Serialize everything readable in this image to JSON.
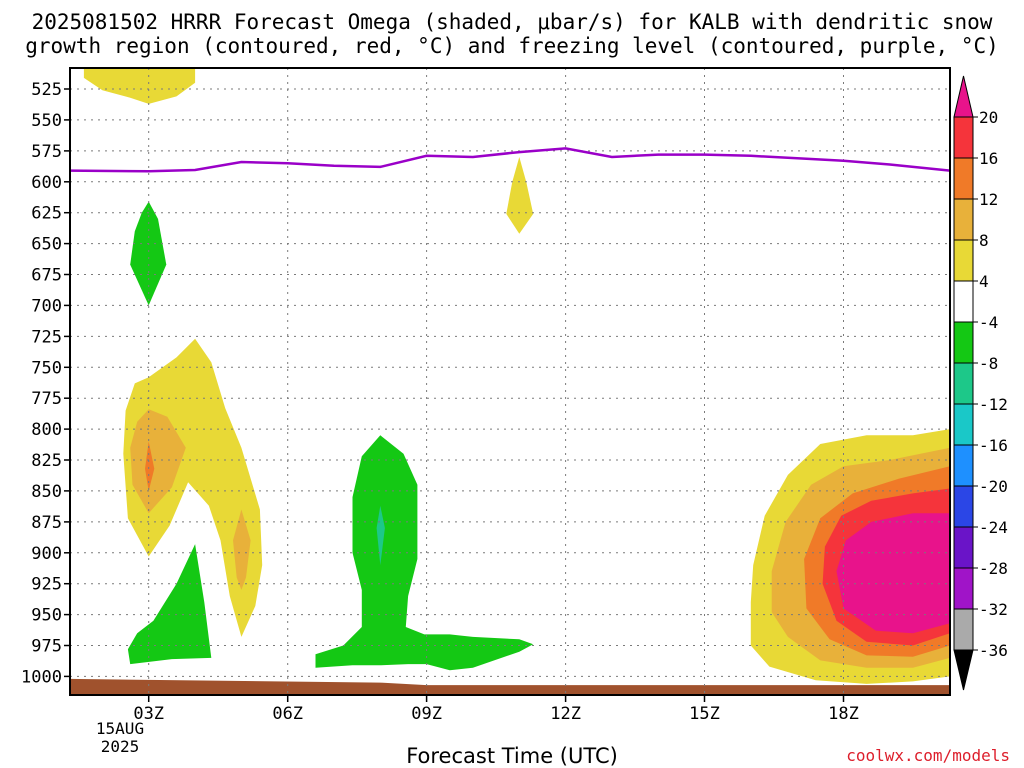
{
  "title": {
    "line1": "2025081502 HRRR Forecast Omega (shaded, μbar/s) for KALB with dendritic snow",
    "line2": "growth region (contoured, red, °C) and freezing level (contoured, purple, °C)"
  },
  "xlabel": "Forecast Time (UTC)",
  "credit": "coolwx.com/models",
  "date_label": [
    "15AUG",
    "2025"
  ],
  "colors": {
    "freezing_level": "#9a00c8",
    "ground": "#a0522d",
    "grid": "#7a7a7a"
  },
  "chart_data": {
    "type": "heatmap",
    "title": "2025081502 HRRR Forecast Omega (shaded, μbar/s) for KALB with dendritic snow growth region (contoured, red, °C) and freezing level (contoured, purple, °C)",
    "xlabel": "Forecast Time (UTC)",
    "ylabel": "",
    "x_range_hours": [
      1.3,
      20.3
    ],
    "x_ticks": [
      {
        "hour": 3,
        "label": "03Z"
      },
      {
        "hour": 6,
        "label": "06Z"
      },
      {
        "hour": 9,
        "label": "09Z"
      },
      {
        "hour": 12,
        "label": "12Z"
      },
      {
        "hour": 15,
        "label": "15Z"
      },
      {
        "hour": 18,
        "label": "18Z"
      }
    ],
    "y_range_hpa": [
      508,
      1015
    ],
    "y_ticks": [
      525,
      550,
      575,
      600,
      625,
      650,
      675,
      700,
      725,
      750,
      775,
      800,
      825,
      850,
      875,
      900,
      925,
      950,
      975,
      1000
    ],
    "grid": true,
    "colorbar": {
      "labels": [
        "20",
        "16",
        "12",
        "8",
        "4",
        "-4",
        "-8",
        "-12",
        "-16",
        "-20",
        "-24",
        "-28",
        "-32",
        "-36"
      ],
      "bins": [
        {
          "range": ">20",
          "color": "#e8138b"
        },
        {
          "range": "16-20",
          "color": "#f5343b"
        },
        {
          "range": "12-16",
          "color": "#f07a28"
        },
        {
          "range": "8-12",
          "color": "#e8b13a"
        },
        {
          "range": "4-8",
          "color": "#e8d936"
        },
        {
          "range": "-4 to 4",
          "color": "#ffffff"
        },
        {
          "range": "-8 to -4",
          "color": "#14c814"
        },
        {
          "range": "-12 to -8",
          "color": "#1dc889"
        },
        {
          "range": "-16 to -12",
          "color": "#1ac8c8"
        },
        {
          "range": "-20 to -16",
          "color": "#1e90ff"
        },
        {
          "range": "-24 to -20",
          "color": "#2b46e6"
        },
        {
          "range": "-28 to -24",
          "color": "#6a14c8"
        },
        {
          "range": "-32 to -28",
          "color": "#a014c8"
        },
        {
          "range": "-36 to -32",
          "color": "#aaaaaa"
        },
        {
          "range": "<-36",
          "color": "#000000"
        }
      ]
    },
    "freezing_level": {
      "name": "freezing level",
      "hours": [
        1.3,
        3.0,
        4.0,
        5.0,
        6.0,
        7.0,
        8.0,
        9.0,
        10.0,
        11.0,
        12.0,
        13.0,
        14.0,
        15.0,
        16.0,
        17.0,
        18.0,
        19.0,
        20.3
      ],
      "pressure_hpa": [
        591,
        591.5,
        590.5,
        584,
        585,
        587,
        588,
        579,
        580,
        576,
        573,
        580,
        578,
        578,
        579,
        581,
        583,
        586,
        591
      ]
    },
    "omega_regions": [
      {
        "name": "upper-left >4",
        "color": "#e8d936",
        "points": [
          [
            1.6,
            508
          ],
          [
            2.9,
            508
          ],
          [
            3.5,
            508
          ],
          [
            4.0,
            508
          ],
          [
            4.0,
            520
          ],
          [
            3.6,
            531
          ],
          [
            3.0,
            537
          ],
          [
            2.6,
            532
          ],
          [
            2.0,
            526
          ],
          [
            1.6,
            516
          ]
        ]
      },
      {
        "name": "11Z >4",
        "color": "#e8d936",
        "points": [
          [
            11.0,
            580
          ],
          [
            11.15,
            600
          ],
          [
            11.3,
            626
          ],
          [
            11.0,
            642
          ],
          [
            10.72,
            626
          ],
          [
            10.85,
            600
          ]
        ]
      },
      {
        "name": "03Z <-4",
        "color": "#14c814",
        "points": [
          [
            3.0,
            616
          ],
          [
            3.2,
            630
          ],
          [
            3.38,
            667
          ],
          [
            3.0,
            700
          ],
          [
            2.6,
            667
          ],
          [
            2.7,
            640
          ],
          [
            2.85,
            625
          ]
        ]
      },
      {
        "name": "03-05Z >4",
        "color": "#e8d936",
        "points": [
          [
            3.0,
            758
          ],
          [
            3.6,
            742
          ],
          [
            4.0,
            727
          ],
          [
            4.35,
            746
          ],
          [
            4.65,
            783
          ],
          [
            5.0,
            815
          ],
          [
            5.4,
            865
          ],
          [
            5.45,
            910
          ],
          [
            5.3,
            943
          ],
          [
            5.0,
            968
          ],
          [
            4.75,
            935
          ],
          [
            4.55,
            890
          ],
          [
            4.3,
            862
          ],
          [
            3.85,
            843
          ],
          [
            3.45,
            878
          ],
          [
            3.0,
            903
          ],
          [
            2.55,
            872
          ],
          [
            2.45,
            820
          ],
          [
            2.5,
            785
          ],
          [
            2.7,
            763
          ]
        ]
      },
      {
        "name": "03Z >8",
        "color": "#e8b13a",
        "points": [
          [
            3.0,
            784
          ],
          [
            3.4,
            790
          ],
          [
            3.8,
            815
          ],
          [
            3.5,
            847
          ],
          [
            3.0,
            868
          ],
          [
            2.65,
            845
          ],
          [
            2.6,
            815
          ],
          [
            2.75,
            794
          ]
        ]
      },
      {
        "name": "03Z >12",
        "color": "#f07a28",
        "points": [
          [
            3.0,
            810
          ],
          [
            3.12,
            832
          ],
          [
            3.0,
            850
          ],
          [
            2.92,
            832
          ]
        ]
      },
      {
        "name": "05Z >8",
        "color": "#e8b13a",
        "points": [
          [
            5.0,
            865
          ],
          [
            5.2,
            890
          ],
          [
            5.1,
            920
          ],
          [
            5.0,
            930
          ],
          [
            4.9,
            920
          ],
          [
            4.82,
            890
          ]
        ]
      },
      {
        "name": "04Z <-4",
        "color": "#14c814",
        "points": [
          [
            4.0,
            893
          ],
          [
            4.2,
            940
          ],
          [
            4.35,
            985
          ],
          [
            3.5,
            986
          ],
          [
            2.6,
            990
          ],
          [
            2.55,
            978
          ],
          [
            2.75,
            965
          ],
          [
            3.1,
            955
          ],
          [
            3.6,
            925
          ],
          [
            3.85,
            905
          ]
        ]
      },
      {
        "name": "08-10Z <-4",
        "color": "#14c814",
        "points": [
          [
            8.0,
            805
          ],
          [
            8.5,
            820
          ],
          [
            8.8,
            845
          ],
          [
            8.8,
            905
          ],
          [
            8.6,
            935
          ],
          [
            8.55,
            960
          ],
          [
            8.95,
            966
          ],
          [
            9.5,
            966
          ],
          [
            10.0,
            968
          ],
          [
            11.0,
            970
          ],
          [
            11.3,
            974
          ],
          [
            11.0,
            980
          ],
          [
            10.0,
            993
          ],
          [
            9.5,
            995
          ],
          [
            9.0,
            990
          ],
          [
            8.6,
            990
          ],
          [
            8.0,
            991
          ],
          [
            7.4,
            991
          ],
          [
            6.6,
            993
          ],
          [
            6.6,
            982
          ],
          [
            7.2,
            975
          ],
          [
            7.6,
            960
          ],
          [
            7.6,
            930
          ],
          [
            7.4,
            900
          ],
          [
            7.4,
            855
          ],
          [
            7.6,
            822
          ]
        ]
      },
      {
        "name": "08Z <-8",
        "color": "#1dc889",
        "points": [
          [
            8.0,
            862
          ],
          [
            8.1,
            880
          ],
          [
            8.0,
            910
          ],
          [
            7.92,
            880
          ]
        ]
      },
      {
        "name": "16-20Z >4",
        "color": "#e8d936",
        "points": [
          [
            20.3,
            800
          ],
          [
            20.3,
            1000
          ],
          [
            19.5,
            1004
          ],
          [
            18.5,
            1006
          ],
          [
            17.4,
            1003
          ],
          [
            16.4,
            992
          ],
          [
            16.0,
            975
          ],
          [
            16.0,
            940
          ],
          [
            16.05,
            910
          ],
          [
            16.3,
            870
          ],
          [
            16.8,
            837
          ],
          [
            17.5,
            812
          ],
          [
            18.5,
            805
          ],
          [
            19.5,
            805
          ]
        ]
      },
      {
        "name": "16-20Z >8",
        "color": "#e8b13a",
        "points": [
          [
            20.3,
            815
          ],
          [
            20.3,
            985
          ],
          [
            19.5,
            993
          ],
          [
            18.5,
            993
          ],
          [
            17.5,
            987
          ],
          [
            16.8,
            968
          ],
          [
            16.45,
            948
          ],
          [
            16.45,
            915
          ],
          [
            16.75,
            875
          ],
          [
            17.3,
            845
          ],
          [
            18.0,
            830
          ],
          [
            19.0,
            825
          ]
        ]
      },
      {
        "name": "16-20Z >12",
        "color": "#f07a28",
        "points": [
          [
            20.3,
            830
          ],
          [
            20.3,
            975
          ],
          [
            19.5,
            984
          ],
          [
            18.5,
            983
          ],
          [
            17.7,
            970
          ],
          [
            17.2,
            945
          ],
          [
            17.15,
            905
          ],
          [
            17.5,
            872
          ],
          [
            18.2,
            852
          ],
          [
            19.2,
            840
          ]
        ]
      },
      {
        "name": "16-20Z >16",
        "color": "#f5343b",
        "points": [
          [
            20.3,
            848
          ],
          [
            20.3,
            965
          ],
          [
            19.5,
            975
          ],
          [
            18.5,
            972
          ],
          [
            17.85,
            955
          ],
          [
            17.55,
            925
          ],
          [
            17.6,
            895
          ],
          [
            17.95,
            870
          ],
          [
            18.6,
            858
          ],
          [
            19.5,
            852
          ]
        ]
      },
      {
        "name": "16-20Z >20",
        "color": "#e8138b",
        "points": [
          [
            20.3,
            868
          ],
          [
            20.3,
            957
          ],
          [
            19.5,
            965
          ],
          [
            18.7,
            963
          ],
          [
            18.0,
            945
          ],
          [
            17.85,
            915
          ],
          [
            18.05,
            890
          ],
          [
            18.6,
            875
          ],
          [
            19.5,
            868
          ]
        ]
      }
    ],
    "ground": {
      "name": "ground",
      "hours": [
        1.3,
        8.0,
        9.0,
        20.3
      ],
      "pressure_hpa": [
        1002,
        1005,
        1007,
        1007
      ]
    }
  }
}
